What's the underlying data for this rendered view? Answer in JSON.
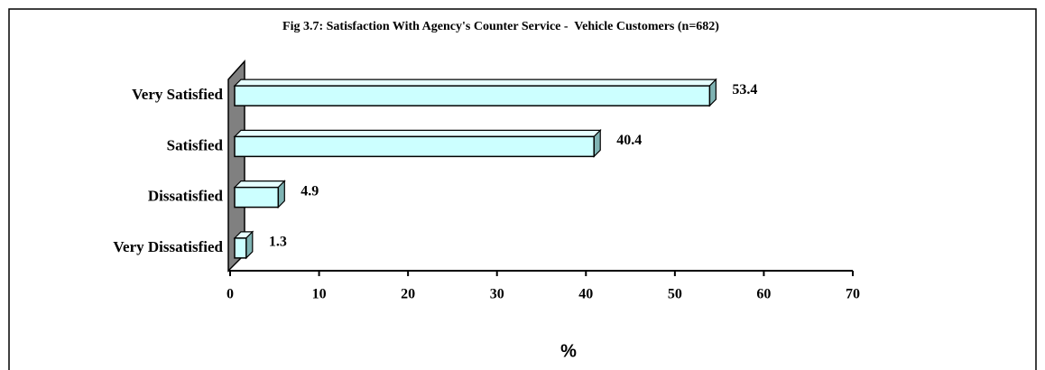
{
  "chart_data": {
    "type": "bar",
    "orientation": "horizontal",
    "three_d": true,
    "title": "Fig 3.7: Satisfaction With Agency's Counter Service -  Vehicle Customers (n=682)",
    "categories": [
      "Very Satisfied",
      "Satisfied",
      "Dissatisfied",
      "Very Dissatisfied"
    ],
    "values": [
      53.4,
      40.4,
      4.9,
      1.3
    ],
    "color": "#ccffff",
    "xlabel": "%",
    "xlim": [
      0,
      70
    ],
    "xticks": [
      0,
      10,
      20,
      30,
      40,
      50,
      60,
      70
    ],
    "grid": false
  }
}
